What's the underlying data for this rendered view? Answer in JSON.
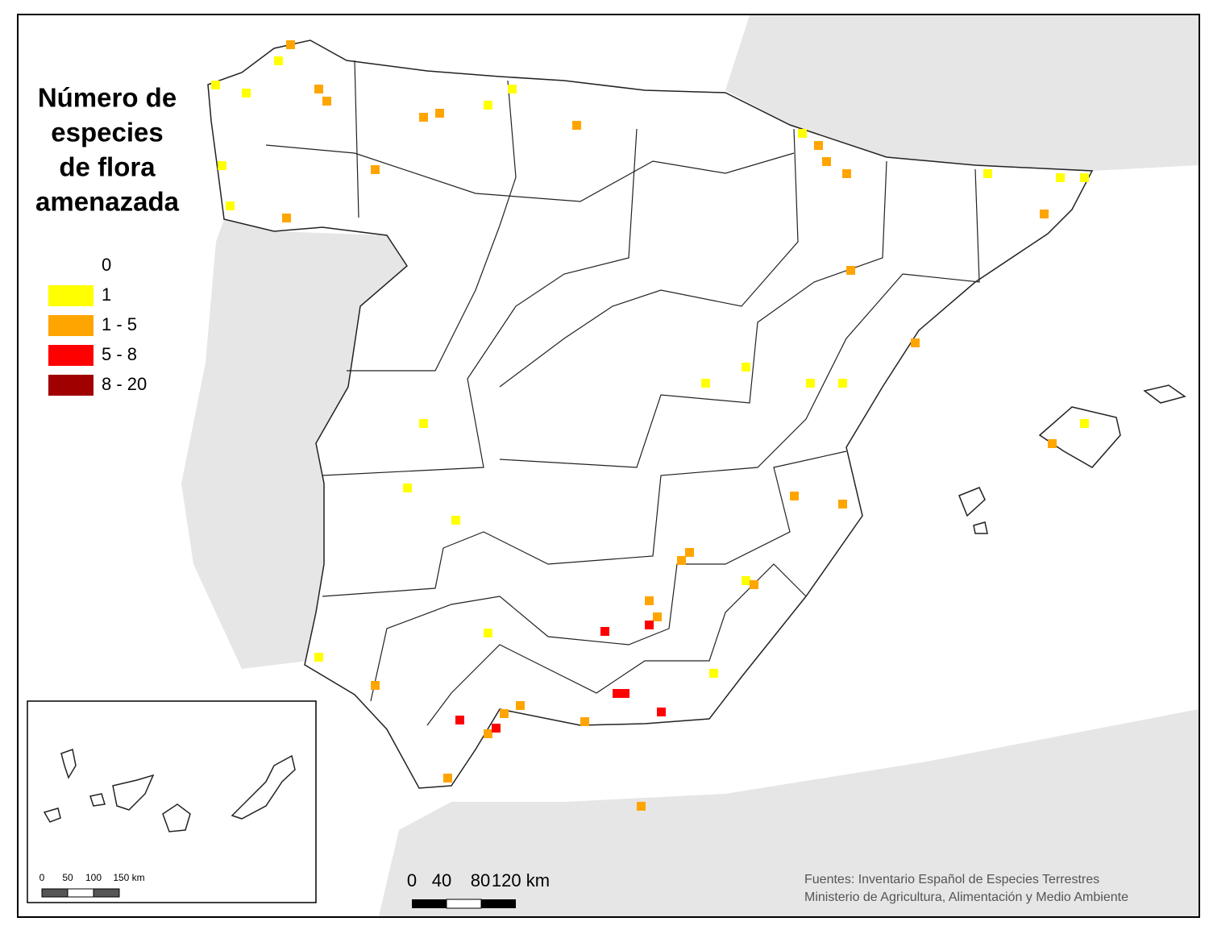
{
  "title_lines": [
    "Número de",
    "especies",
    "de flora",
    "amenazada"
  ],
  "legend": [
    {
      "label": "0",
      "color": "#ffffff"
    },
    {
      "label": "1",
      "color": "#ffff00"
    },
    {
      "label": "1 - 5",
      "color": "#ffa500"
    },
    {
      "label": "5 - 8",
      "color": "#ff0000"
    },
    {
      "label": "8 - 20",
      "color": "#a00000"
    }
  ],
  "scale_bar": [
    "0",
    "40",
    "80",
    "120 km"
  ],
  "inset_scale_bar": [
    "0",
    "50",
    "100",
    "150 km"
  ],
  "sources": [
    "Fuentes: Inventario Español de Especies Terrestres",
    "Ministerio de Agricultura, Alimentación y Medio Ambiente"
  ]
}
